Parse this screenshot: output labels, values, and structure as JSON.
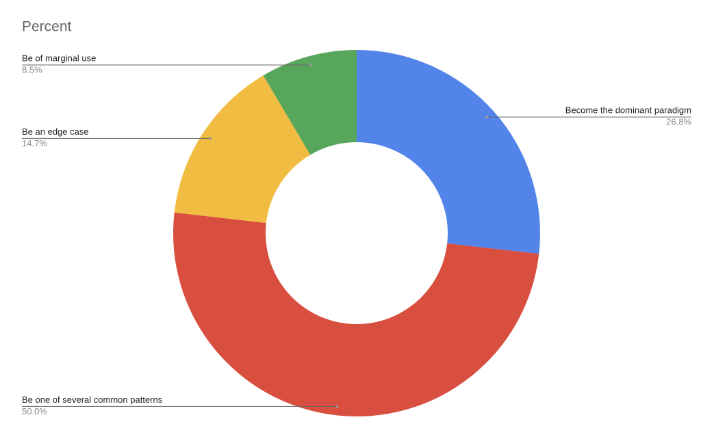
{
  "chart_data": {
    "type": "donut",
    "title": "Percent",
    "categories": [
      "Become the dominant paradigm",
      "Be one of several common patterns",
      "Be an edge case",
      "Be of marginal use"
    ],
    "values": [
      26.8,
      50.0,
      14.7,
      8.5
    ],
    "value_labels": [
      "26.8%",
      "50.0%",
      "14.7%",
      "8.5%"
    ],
    "colors": [
      "#5384ea",
      "#d94f3f",
      "#f0bd42",
      "#58a65c"
    ]
  }
}
